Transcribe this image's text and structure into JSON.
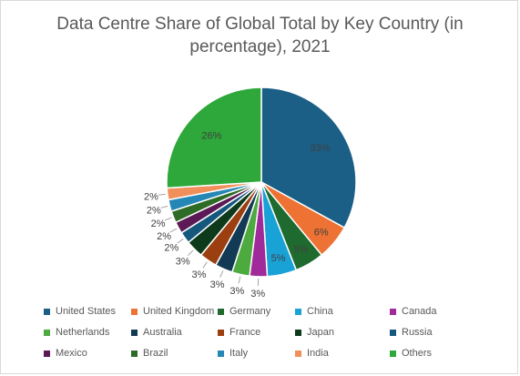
{
  "chart_data": {
    "type": "pie",
    "title_line1": "Data Centre Share of Global Total by Key Country (in",
    "title_line2": "percentage), 2021",
    "slices": [
      {
        "name": "United States",
        "value": 33,
        "label": "33%",
        "color": "#1b5e86"
      },
      {
        "name": "United Kingdom",
        "value": 6,
        "label": "6%",
        "color": "#ed7233"
      },
      {
        "name": "Germany",
        "value": 5,
        "label": "5%",
        "color": "#1e6a2f"
      },
      {
        "name": "China",
        "value": 5,
        "label": "5%",
        "color": "#19a2d6"
      },
      {
        "name": "Canada",
        "value": 3,
        "label": "3%",
        "color": "#a12a9a"
      },
      {
        "name": "Netherlands",
        "value": 3,
        "label": "3%",
        "color": "#4daa3f"
      },
      {
        "name": "Australia",
        "value": 3,
        "label": "3%",
        "color": "#123a55"
      },
      {
        "name": "France",
        "value": 3,
        "label": "3%",
        "color": "#9b3f11"
      },
      {
        "name": "Japan",
        "value": 3,
        "label": "3%",
        "color": "#0d3a1a"
      },
      {
        "name": "Russia",
        "value": 2,
        "label": "2%",
        "color": "#15587d"
      },
      {
        "name": "Mexico",
        "value": 2,
        "label": "2%",
        "color": "#5b1a55"
      },
      {
        "name": "Brazil",
        "value": 2,
        "label": "2%",
        "color": "#2d6b27"
      },
      {
        "name": "Italy",
        "value": 2,
        "label": "2%",
        "color": "#2587b5"
      },
      {
        "name": "India",
        "value": 2,
        "label": "2%",
        "color": "#f08f5b"
      },
      {
        "name": "Others",
        "value": 26,
        "label": "26%",
        "color": "#2ea83a"
      }
    ],
    "legend_position": "bottom"
  }
}
